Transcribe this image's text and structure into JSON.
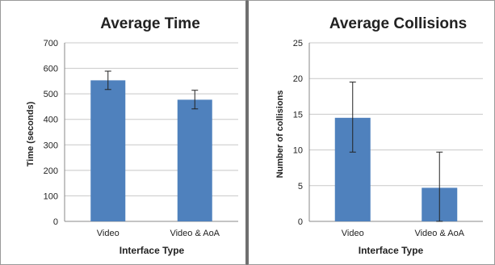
{
  "chart_data": [
    {
      "type": "bar",
      "title": "Average Time",
      "xlabel": "Interface Type",
      "ylabel": "Time (seconds)",
      "categories": [
        "Video",
        "Video & AoA"
      ],
      "values": [
        553,
        477
      ],
      "error_low": [
        517,
        441
      ],
      "error_high": [
        589,
        514
      ],
      "ylim": [
        0,
        700
      ],
      "yticks": [
        "0",
        "100",
        "200",
        "300",
        "400",
        "500",
        "600",
        "700"
      ],
      "ytick_values": [
        0,
        100,
        200,
        300,
        400,
        500,
        600,
        700
      ],
      "grid": true,
      "bar_color": "#4f81bd"
    },
    {
      "type": "bar",
      "title": "Average Collisions",
      "xlabel": "Interface Type",
      "ylabel": "Number of collisions",
      "categories": [
        "Video",
        "Video & AoA"
      ],
      "values": [
        14.5,
        4.7
      ],
      "error_low": [
        9.7,
        0
      ],
      "error_high": [
        19.5,
        9.7
      ],
      "ylim": [
        0,
        25
      ],
      "yticks": [
        "0",
        "5",
        "10",
        "15",
        "20",
        "25"
      ],
      "ytick_values": [
        0,
        5,
        10,
        15,
        20,
        25
      ],
      "grid": true,
      "bar_color": "#4f81bd"
    }
  ]
}
